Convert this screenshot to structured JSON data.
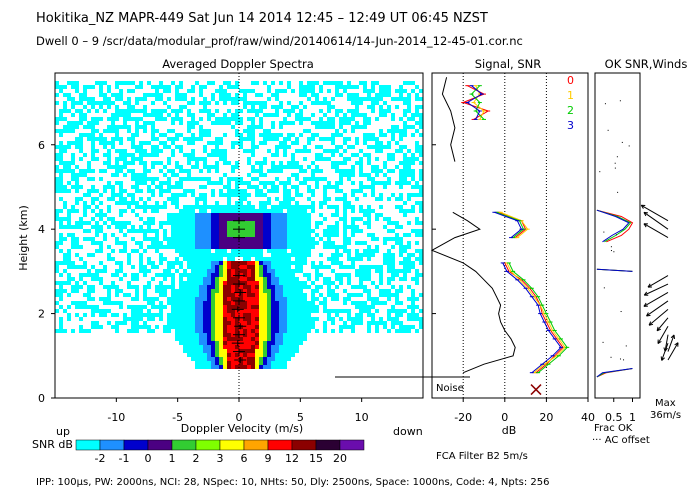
{
  "header": {
    "line1": "Hokitika_NZ   MAPR-449   Sat Jun 14 2014 12:45  –  12:49 UT 06:45 NZST",
    "line2": "Dwell   0  –   9    /scr/data/modular_prof/raw/wind/20140614/14-Jun-2014_12-45-01.cor.nc"
  },
  "footer": {
    "params": "IPP: 100µs,   PW: 2000ns,   NCI:  28,   NSpec: 10,  NHts: 50,   Dly: 2500ns,   Space: 1000ns,   Code: 4,   Npts: 256",
    "filter": "FCA Filter B2   5m/s"
  },
  "colors": {
    "snr_palette": [
      "#00ffff",
      "#1e90ff",
      "#0000cd",
      "#4b0082",
      "#32cd32",
      "#7fff00",
      "#ffff00",
      "#ffa500",
      "#ff0000",
      "#8b0000",
      "#2b0033",
      "#6a0dad"
    ],
    "red": "#ff0000",
    "yellow": "#ffcc00",
    "green": "#00cc00",
    "blue": "#0000cc"
  },
  "chart_data": [
    {
      "id": "spectra",
      "type": "heatmap",
      "title": "Averaged Doppler Spectra",
      "xlabel": "Doppler Velocity (m/s)",
      "ylabel": "Height (km)",
      "xlim": [
        -15,
        15
      ],
      "ylim": [
        0,
        7.7
      ],
      "xticks": [
        -10,
        -5,
        0,
        5,
        10
      ],
      "yticks": [
        0,
        2,
        4,
        6
      ],
      "left_note": "up",
      "right_note": "down",
      "colorbar": {
        "label": "SNR dB",
        "ticks": [
          "-2",
          "-1",
          "0",
          "1",
          "2",
          "3",
          "6",
          "9",
          "12",
          "15",
          "20"
        ]
      },
      "peak_velocity": {
        "height_km": [
          0.9,
          1.1,
          1.3,
          1.5,
          1.7,
          1.9,
          2.1,
          2.3,
          2.5,
          2.7,
          2.9,
          3.8,
          4.0,
          4.2
        ],
        "velocity_ms": [
          0.1,
          0.0,
          -0.1,
          0.0,
          0.1,
          0.0,
          -0.1,
          0.0,
          0.1,
          0.0,
          0.0,
          0.0,
          0.0,
          0.0
        ]
      }
    },
    {
      "id": "signal",
      "type": "line",
      "title": "Signal, SNR",
      "xlabel": "dB",
      "xlim": [
        -35,
        40
      ],
      "ylim": [
        0,
        7.7
      ],
      "xticks": [
        -20,
        0,
        20,
        40
      ],
      "noise_label": "Noise",
      "signal": {
        "height_km": [
          0.6,
          0.8,
          1.0,
          1.2,
          1.4,
          1.6,
          1.8,
          2.0,
          2.2,
          2.4,
          2.6,
          2.8,
          3.0,
          3.2,
          3.5,
          3.8,
          4.0,
          4.2,
          4.4,
          5.6,
          6.0,
          6.4,
          6.8,
          7.2,
          7.6
        ],
        "value_db": [
          -20,
          -10,
          4,
          5,
          3,
          0,
          -2,
          -3,
          -2,
          -4,
          -6,
          -10,
          -14,
          -20,
          -35,
          -24,
          -12,
          -18,
          -25,
          -24,
          -26,
          -24,
          -26,
          -30,
          -28
        ]
      },
      "snr_series": [
        {
          "name": "0",
          "color": "red",
          "height_km": [
            0.6,
            0.8,
            1.0,
            1.2,
            1.4,
            1.6,
            1.8,
            2.0,
            2.2,
            2.4,
            2.6,
            2.8,
            3.0,
            3.2,
            3.8,
            4.0,
            4.2,
            4.4,
            6.6,
            6.8,
            7.0,
            7.2,
            7.4
          ],
          "value_db": [
            15,
            20,
            24,
            28,
            25,
            22,
            20,
            18,
            17,
            15,
            12,
            8,
            2,
            0,
            5,
            10,
            8,
            -3,
            -15,
            -8,
            -20,
            -10,
            -18
          ]
        },
        {
          "name": "1",
          "color": "yellow",
          "height_km": [
            0.6,
            0.8,
            1.0,
            1.2,
            1.4,
            1.6,
            1.8,
            2.0,
            2.2,
            2.4,
            2.6,
            2.8,
            3.0,
            3.2,
            3.8,
            4.0,
            4.2,
            4.4,
            6.6,
            6.8,
            7.0,
            7.2,
            7.4
          ],
          "value_db": [
            14,
            19,
            25,
            29,
            26,
            23,
            21,
            19,
            17,
            14,
            11,
            7,
            3,
            1,
            6,
            11,
            8,
            -2,
            -12,
            -10,
            -15,
            -12,
            -14
          ]
        },
        {
          "name": "2",
          "color": "green",
          "height_km": [
            0.6,
            0.8,
            1.0,
            1.2,
            1.4,
            1.6,
            1.8,
            2.0,
            2.2,
            2.4,
            2.6,
            2.8,
            3.0,
            3.2,
            3.8,
            4.0,
            4.2,
            4.4,
            6.6,
            6.8,
            7.0,
            7.2,
            7.4
          ],
          "value_db": [
            16,
            21,
            26,
            30,
            27,
            24,
            22,
            20,
            18,
            16,
            13,
            9,
            4,
            2,
            4,
            9,
            7,
            -4,
            -10,
            -14,
            -12,
            -16,
            -12
          ]
        },
        {
          "name": "3",
          "color": "blue",
          "height_km": [
            0.6,
            0.8,
            1.0,
            1.2,
            1.4,
            1.6,
            1.8,
            2.0,
            2.2,
            2.4,
            2.6,
            2.8,
            3.0,
            3.2,
            3.8,
            4.0,
            4.2,
            4.4,
            6.6,
            6.8,
            7.0,
            7.2,
            7.4
          ],
          "value_db": [
            13,
            18,
            23,
            27,
            24,
            21,
            19,
            17,
            16,
            13,
            10,
            6,
            1,
            -1,
            3,
            8,
            6,
            -5,
            -14,
            -12,
            -18,
            -11,
            -16
          ]
        }
      ]
    },
    {
      "id": "frac",
      "type": "line",
      "title": "OK SNR,Winds",
      "xlabel": "Frac OK",
      "xlim": [
        0,
        1.2
      ],
      "ylim": [
        0,
        7.7
      ],
      "xticks": [
        "0.5",
        "1"
      ],
      "ac_label": "··· AC offset",
      "max_label": "Max",
      "max_value": "36m/s",
      "series": [
        {
          "name": "0",
          "color": "red",
          "height_km": [
            0.5,
            0.6,
            0.7,
            3.0,
            3.05,
            3.7,
            3.85,
            4.0,
            4.15,
            4.3,
            4.45
          ],
          "frac": [
            0.05,
            0.3,
            1.0,
            1.0,
            0.05,
            0.3,
            0.7,
            0.9,
            1.0,
            0.7,
            0.05
          ]
        },
        {
          "name": "2",
          "color": "green",
          "height_km": [
            0.5,
            0.6,
            0.7,
            3.0,
            3.05,
            3.7,
            3.85,
            4.0,
            4.15,
            4.3,
            4.45
          ],
          "frac": [
            0.05,
            0.25,
            1.0,
            1.0,
            0.05,
            0.25,
            0.55,
            0.8,
            0.95,
            0.6,
            0.05
          ]
        },
        {
          "name": "3",
          "color": "blue",
          "height_km": [
            0.5,
            0.6,
            0.7,
            3.0,
            3.05,
            3.7,
            3.85,
            4.0,
            4.15,
            4.3,
            4.45
          ],
          "frac": [
            0.05,
            0.2,
            1.0,
            1.0,
            0.05,
            0.2,
            0.45,
            0.75,
            0.9,
            0.55,
            0.05
          ]
        }
      ],
      "winds": [
        {
          "height_km": 0.9,
          "dir_deg": 30,
          "speed_ms": 18
        },
        {
          "height_km": 1.1,
          "dir_deg": 20,
          "speed_ms": 15
        },
        {
          "height_km": 1.3,
          "dir_deg": 200,
          "speed_ms": 16
        },
        {
          "height_km": 1.5,
          "dir_deg": 190,
          "speed_ms": 14
        },
        {
          "height_km": 1.7,
          "dir_deg": 210,
          "speed_ms": 18
        },
        {
          "height_km": 1.9,
          "dir_deg": 220,
          "speed_ms": 14
        },
        {
          "height_km": 2.1,
          "dir_deg": 230,
          "speed_ms": 24
        },
        {
          "height_km": 2.3,
          "dir_deg": 235,
          "speed_ms": 26
        },
        {
          "height_km": 2.5,
          "dir_deg": 240,
          "speed_ms": 28
        },
        {
          "height_km": 2.7,
          "dir_deg": 245,
          "speed_ms": 26
        },
        {
          "height_km": 2.9,
          "dir_deg": 240,
          "speed_ms": 22
        },
        {
          "height_km": 3.8,
          "dir_deg": 300,
          "speed_ms": 28
        },
        {
          "height_km": 4.0,
          "dir_deg": 305,
          "speed_ms": 30
        },
        {
          "height_km": 4.2,
          "dir_deg": 300,
          "speed_ms": 32
        }
      ]
    }
  ]
}
